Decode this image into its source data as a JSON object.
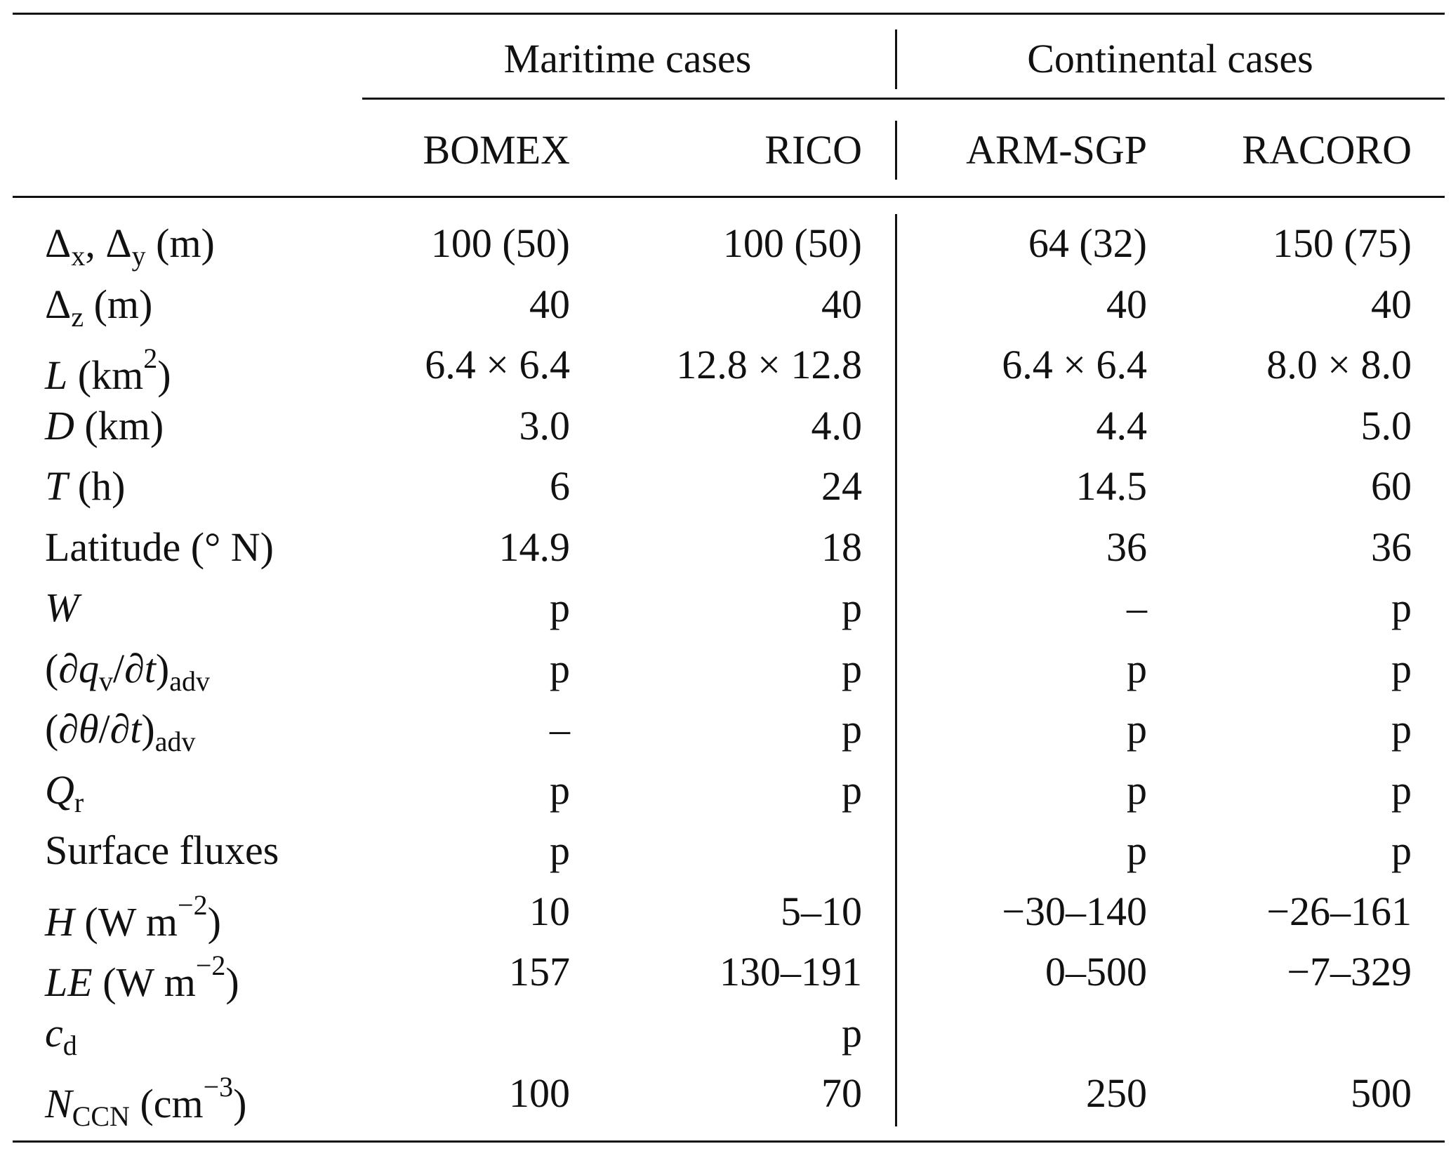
{
  "table": {
    "groups": [
      "Maritime cases",
      "Continental cases"
    ],
    "columns": [
      "BOMEX",
      "RICO",
      "ARM-SGP",
      "RACORO"
    ],
    "rows": [
      {
        "label": [
          {
            "text": "Δ"
          },
          {
            "text": "x",
            "style": "sub"
          },
          {
            "text": ", Δ"
          },
          {
            "text": "y",
            "style": "sub"
          },
          {
            "text": " (m)"
          }
        ],
        "cells": [
          "100 (50)",
          "100 (50)",
          "64 (32)",
          "150 (75)"
        ]
      },
      {
        "label": [
          {
            "text": "Δ"
          },
          {
            "text": "z",
            "style": "sub"
          },
          {
            "text": " (m)"
          }
        ],
        "cells": [
          "40",
          "40",
          "40",
          "40"
        ]
      },
      {
        "label": [
          {
            "text": "L",
            "style": "i"
          },
          {
            "text": " (km"
          },
          {
            "text": "2",
            "style": "sup"
          },
          {
            "text": ")"
          }
        ],
        "cells": [
          "6.4 × 6.4",
          "12.8 × 12.8",
          "6.4 × 6.4",
          "8.0 × 8.0"
        ]
      },
      {
        "label": [
          {
            "text": "D",
            "style": "i"
          },
          {
            "text": " (km)"
          }
        ],
        "cells": [
          "3.0",
          "4.0",
          "4.4",
          "5.0"
        ]
      },
      {
        "label": [
          {
            "text": "T",
            "style": "i"
          },
          {
            "text": " (h)"
          }
        ],
        "cells": [
          "6",
          "24",
          "14.5",
          "60"
        ]
      },
      {
        "label": [
          {
            "text": "Latitude (° N)"
          }
        ],
        "cells": [
          "14.9",
          "18",
          "36",
          "36"
        ]
      },
      {
        "label": [
          {
            "text": "W",
            "style": "i"
          }
        ],
        "cells": [
          "p",
          "p",
          "–",
          "p"
        ]
      },
      {
        "label": [
          {
            "text": "(∂"
          },
          {
            "text": "q",
            "style": "i"
          },
          {
            "text": "v",
            "style": "sub"
          },
          {
            "text": "/∂"
          },
          {
            "text": "t",
            "style": "i"
          },
          {
            "text": ")"
          },
          {
            "text": "adv",
            "style": "sub"
          }
        ],
        "cells": [
          "p",
          "p",
          "p",
          "p"
        ]
      },
      {
        "label": [
          {
            "text": "(∂"
          },
          {
            "text": "θ",
            "style": "i"
          },
          {
            "text": "/∂"
          },
          {
            "text": "t",
            "style": "i"
          },
          {
            "text": ")"
          },
          {
            "text": "adv",
            "style": "sub"
          }
        ],
        "cells": [
          "–",
          "p",
          "p",
          "p"
        ]
      },
      {
        "label": [
          {
            "text": "Q",
            "style": "i"
          },
          {
            "text": "r",
            "style": "sub"
          }
        ],
        "cells": [
          "p",
          "p",
          "p",
          "p"
        ]
      },
      {
        "label": [
          {
            "text": "Surface fluxes"
          }
        ],
        "cells": [
          "p",
          "*",
          "p",
          "p"
        ]
      },
      {
        "label": [
          {
            "text": "H",
            "style": "i"
          },
          {
            "text": " (W m"
          },
          {
            "text": "−2",
            "style": "sup"
          },
          {
            "text": ")"
          }
        ],
        "cells": [
          "10",
          "5–10",
          "−30–140",
          "−26–161"
        ]
      },
      {
        "label": [
          {
            "text": "LE",
            "style": "i"
          },
          {
            "text": " (W m"
          },
          {
            "text": "−2",
            "style": "sup"
          },
          {
            "text": ")"
          }
        ],
        "cells": [
          "157",
          "130–191",
          "0–500",
          "−7–329"
        ]
      },
      {
        "label": [
          {
            "text": "c",
            "style": "i"
          },
          {
            "text": "d",
            "style": "sub"
          }
        ],
        "cells": [
          "*",
          "p",
          "*",
          "*"
        ]
      },
      {
        "label": [
          {
            "text": "N",
            "style": "i"
          },
          {
            "text": "CCN",
            "style": "sub"
          },
          {
            "text": " (cm"
          },
          {
            "text": "−3",
            "style": "sup"
          },
          {
            "text": ")"
          }
        ],
        "cells": [
          "100",
          "70",
          "250",
          "500"
        ]
      }
    ]
  }
}
